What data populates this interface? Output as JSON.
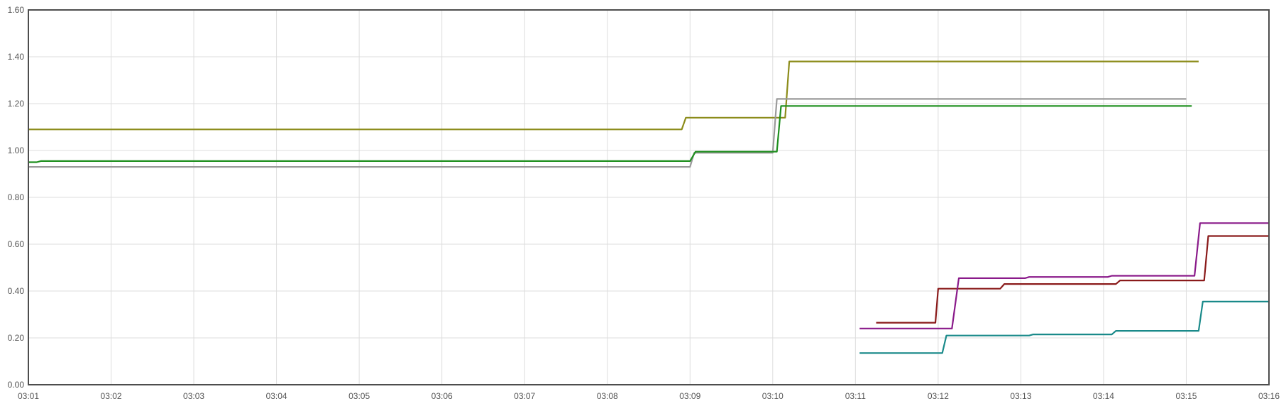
{
  "chart_data": {
    "type": "line",
    "title": "",
    "xlabel": "",
    "ylabel": "",
    "xlim": [
      "03:01",
      "03:16"
    ],
    "ylim": [
      0,
      1.6
    ],
    "grid": true,
    "x_ticks": [
      "03:01",
      "03:02",
      "03:03",
      "03:04",
      "03:05",
      "03:06",
      "03:07",
      "03:08",
      "03:09",
      "03:10",
      "03:11",
      "03:12",
      "03:13",
      "03:14",
      "03:15",
      "03:16"
    ],
    "y_ticks": [
      "0.00",
      "0.20",
      "0.40",
      "0.60",
      "0.80",
      "1.00",
      "1.20",
      "1.40",
      "1.60"
    ],
    "series": [
      {
        "color": "#8c8c1a",
        "points": [
          [
            "03:01",
            1.09
          ],
          [
            "03:08:54",
            1.09
          ],
          [
            "03:08:57",
            1.14
          ],
          [
            "03:10:09",
            1.14
          ],
          [
            "03:10:12",
            1.38
          ],
          [
            "03:15:09",
            1.38
          ]
        ]
      },
      {
        "color": "#9a9a9a",
        "points": [
          [
            "03:01",
            0.93
          ],
          [
            "03:09",
            0.93
          ],
          [
            "03:09:03",
            0.99
          ],
          [
            "03:10",
            0.99
          ],
          [
            "03:10:03",
            1.22
          ],
          [
            "03:15",
            1.22
          ]
        ]
      },
      {
        "color": "#1f8f1f",
        "points": [
          [
            "03:01",
            0.95
          ],
          [
            "03:01:06",
            0.95
          ],
          [
            "03:01:09",
            0.955
          ],
          [
            "03:09",
            0.955
          ],
          [
            "03:09:04",
            0.995
          ],
          [
            "03:10:03",
            0.995
          ],
          [
            "03:10:06",
            1.19
          ],
          [
            "03:15:04",
            1.19
          ]
        ]
      },
      {
        "color": "#8a1a1a",
        "points": [
          [
            "03:11:15",
            0.265
          ],
          [
            "03:11:58",
            0.265
          ],
          [
            "03:12",
            0.41
          ],
          [
            "03:12:45",
            0.41
          ],
          [
            "03:12:48",
            0.43
          ],
          [
            "03:14:09",
            0.43
          ],
          [
            "03:14:12",
            0.445
          ],
          [
            "03:15:13",
            0.445
          ],
          [
            "03:15:16",
            0.635
          ],
          [
            "03:16",
            0.635
          ]
        ]
      },
      {
        "color": "#8a1a8a",
        "points": [
          [
            "03:11:03",
            0.24
          ],
          [
            "03:12:10",
            0.24
          ],
          [
            "03:12:15",
            0.455
          ],
          [
            "03:13:03",
            0.455
          ],
          [
            "03:13:06",
            0.46
          ],
          [
            "03:14:03",
            0.46
          ],
          [
            "03:14:06",
            0.465
          ],
          [
            "03:15:06",
            0.465
          ],
          [
            "03:15:10",
            0.69
          ],
          [
            "03:16",
            0.69
          ]
        ]
      },
      {
        "color": "#1a8a8a",
        "points": [
          [
            "03:11:03",
            0.135
          ],
          [
            "03:12:03",
            0.135
          ],
          [
            "03:12:06",
            0.21
          ],
          [
            "03:13:06",
            0.21
          ],
          [
            "03:13:09",
            0.215
          ],
          [
            "03:14:06",
            0.215
          ],
          [
            "03:14:09",
            0.23
          ],
          [
            "03:15:09",
            0.23
          ],
          [
            "03:15:12",
            0.355
          ],
          [
            "03:16",
            0.355
          ]
        ]
      }
    ]
  }
}
